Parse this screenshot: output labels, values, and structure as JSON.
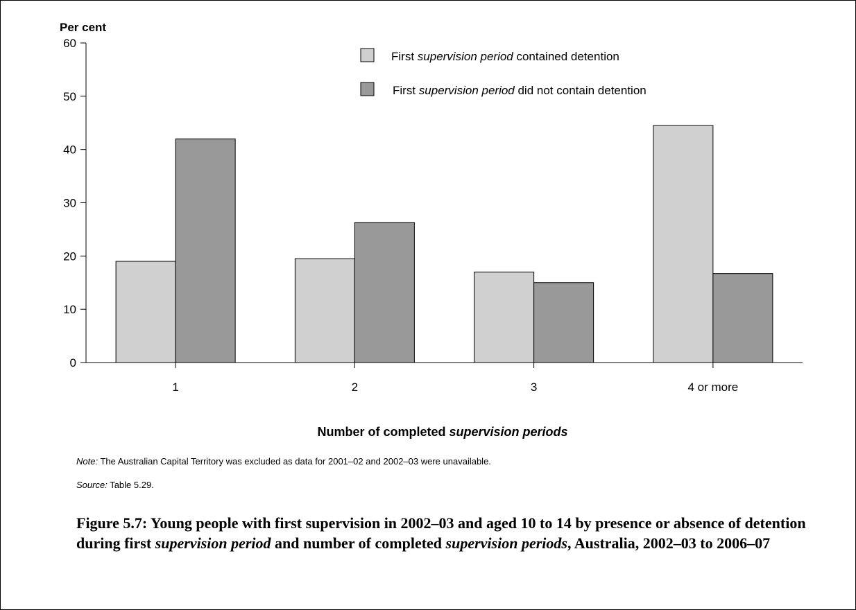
{
  "chart_data": {
    "type": "bar",
    "ylabel": "Per cent",
    "xlabel_parts": [
      "Number of completed ",
      "supervision periods"
    ],
    "ylim": [
      0,
      60
    ],
    "yticks": [
      0,
      10,
      20,
      30,
      40,
      50,
      60
    ],
    "categories": [
      "1",
      "2",
      "3",
      "4 or more"
    ],
    "series": [
      {
        "name_parts": [
          "First ",
          "supervision period",
          " contained detention"
        ],
        "values": [
          19,
          19.5,
          17,
          44.5
        ],
        "color": "#d0d0d0"
      },
      {
        "name_parts": [
          "First ",
          "supervision period",
          " did not contain detention"
        ],
        "values": [
          42,
          26.3,
          15,
          16.7
        ],
        "color": "#999999"
      }
    ],
    "legend_position": "top-right",
    "grid": false
  },
  "note": {
    "label": "Note:",
    "text": " The Australian Capital Territory was excluded as data for 2001–02 and 2002–03 were unavailable."
  },
  "source": {
    "label": "Source:",
    "text": " Table 5.29."
  },
  "caption": {
    "part1": "Figure 5.7: Young people with first supervision in 2002–03 and aged 10 to 14 by presence or absence of detention during first ",
    "italic1": "supervision period",
    "part2": " and number of completed ",
    "italic2": "supervision periods",
    "part3": ", Australia, 2002–03 to 2006–07"
  }
}
